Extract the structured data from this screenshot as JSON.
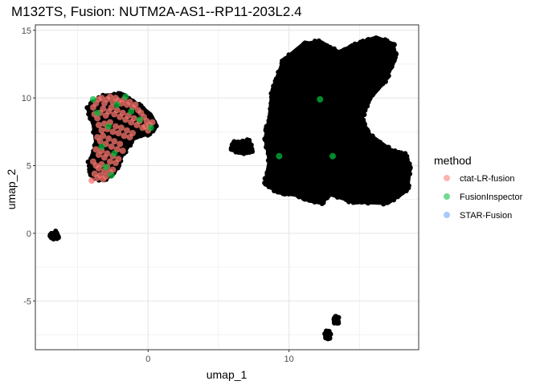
{
  "chart_data": {
    "type": "scatter",
    "title": "M132TS, Fusion:  NUTM2A-AS1--RP11-203L2.4",
    "xlabel": "umap_1",
    "ylabel": "umap_2",
    "xlim": [
      -8,
      19.2
    ],
    "ylim": [
      -8.6,
      15.4
    ],
    "x_ticks": [
      0,
      10
    ],
    "x_tick_labels": [
      "0",
      "10"
    ],
    "y_ticks": [
      -5,
      0,
      5,
      10,
      15
    ],
    "y_tick_labels": [
      "-5",
      "0",
      "5",
      "10",
      "15"
    ],
    "grid": true,
    "legend_position": "right",
    "legend": {
      "title": "method",
      "entries": [
        {
          "label": "ctat-LR-fusion",
          "color": "#f8766d"
        },
        {
          "label": "FusionInspector",
          "color": "#00ba38"
        },
        {
          "label": "STAR-Fusion",
          "color": "#619cff"
        }
      ]
    },
    "background_series": {
      "description_color": "#000000",
      "clusters": [
        {
          "polygon": [
            [
              -4.0,
              9.6
            ],
            [
              -3.2,
              10.2
            ],
            [
              -1.8,
              10.3
            ],
            [
              -0.8,
              9.6
            ],
            [
              0.2,
              8.8
            ],
            [
              0.6,
              8.0
            ],
            [
              0.2,
              7.4
            ],
            [
              -1.0,
              7.0
            ],
            [
              -1.8,
              5.8
            ],
            [
              -2.4,
              4.4
            ],
            [
              -3.2,
              3.9
            ],
            [
              -4.0,
              4.2
            ],
            [
              -4.2,
              5.2
            ],
            [
              -3.7,
              6.6
            ],
            [
              -3.9,
              8.0
            ],
            [
              -4.3,
              9.2
            ]
          ],
          "n": 200
        },
        {
          "polygon": [
            [
              6.0,
              6.7
            ],
            [
              7.2,
              6.9
            ],
            [
              7.4,
              6.1
            ],
            [
              6.6,
              5.9
            ],
            [
              5.9,
              6.2
            ]
          ],
          "n": 22
        },
        {
          "polygon": [
            [
              8.8,
              10.6
            ],
            [
              9.6,
              12.8
            ],
            [
              11.0,
              14.0
            ],
            [
              12.2,
              14.2
            ],
            [
              13.5,
              13.4
            ],
            [
              14.8,
              14.0
            ],
            [
              16.2,
              14.5
            ],
            [
              17.4,
              14.0
            ],
            [
              17.6,
              13.0
            ],
            [
              16.8,
              11.2
            ],
            [
              15.8,
              10.0
            ],
            [
              15.2,
              8.6
            ],
            [
              15.6,
              7.4
            ],
            [
              17.2,
              6.2
            ],
            [
              18.3,
              5.8
            ],
            [
              18.6,
              4.8
            ],
            [
              18.4,
              3.2
            ],
            [
              17.0,
              2.2
            ],
            [
              14.6,
              2.3
            ],
            [
              12.8,
              2.9
            ],
            [
              12.4,
              2.2
            ],
            [
              11.4,
              2.4
            ],
            [
              10.6,
              2.8
            ],
            [
              9.2,
              3.0
            ],
            [
              8.3,
              3.7
            ],
            [
              8.6,
              5.4
            ],
            [
              8.3,
              7.0
            ],
            [
              8.6,
              8.6
            ]
          ],
          "n": 1400
        },
        {
          "polygon": [
            [
              -6.9,
              -0.05
            ],
            [
              -6.5,
              0.1
            ],
            [
              -6.3,
              -0.25
            ],
            [
              -6.6,
              -0.4
            ],
            [
              -6.95,
              -0.3
            ]
          ],
          "n": 10
        },
        {
          "polygon": [
            [
              12.6,
              -7.3
            ],
            [
              12.9,
              -7.2
            ],
            [
              12.9,
              -7.7
            ],
            [
              12.6,
              -7.8
            ]
          ],
          "n": 4
        },
        {
          "polygon": [
            [
              13.2,
              -6.2
            ],
            [
              13.5,
              -6.2
            ],
            [
              13.5,
              -6.6
            ],
            [
              13.2,
              -6.6
            ]
          ],
          "n": 4
        }
      ]
    },
    "series": [
      {
        "name": "ctat-LR-fusion",
        "color": "#f8766d",
        "points": [
          [
            -3.9,
            9.3
          ],
          [
            -3.7,
            9.6
          ],
          [
            -3.5,
            9.9
          ],
          [
            -3.3,
            10.0
          ],
          [
            -3.1,
            9.6
          ],
          [
            -2.9,
            9.9
          ],
          [
            -2.7,
            10.1
          ],
          [
            -2.5,
            9.7
          ],
          [
            -2.3,
            10.0
          ],
          [
            -2.1,
            9.8
          ],
          [
            -1.9,
            9.6
          ],
          [
            -1.7,
            9.9
          ],
          [
            -1.5,
            9.5
          ],
          [
            -1.3,
            9.7
          ],
          [
            -1.1,
            9.3
          ],
          [
            -0.9,
            9.5
          ],
          [
            -0.7,
            9.1
          ],
          [
            -0.5,
            8.9
          ],
          [
            -0.3,
            8.6
          ],
          [
            -0.1,
            8.3
          ],
          [
            0.1,
            8.0
          ],
          [
            0.3,
            8.2
          ],
          [
            -3.8,
            8.8
          ],
          [
            -3.6,
            8.5
          ],
          [
            -3.4,
            8.9
          ],
          [
            -3.2,
            9.2
          ],
          [
            -3.0,
            8.7
          ],
          [
            -2.8,
            9.0
          ],
          [
            -2.6,
            9.3
          ],
          [
            -2.4,
            8.8
          ],
          [
            -2.2,
            9.1
          ],
          [
            -2.0,
            8.6
          ],
          [
            -1.8,
            8.9
          ],
          [
            -1.6,
            8.4
          ],
          [
            -1.4,
            8.7
          ],
          [
            -1.2,
            8.2
          ],
          [
            -1.0,
            8.5
          ],
          [
            -0.8,
            8.0
          ],
          [
            -0.6,
            8.3
          ],
          [
            -0.4,
            7.8
          ],
          [
            -0.2,
            7.9
          ],
          [
            0.0,
            7.6
          ],
          [
            -3.5,
            8.0
          ],
          [
            -3.3,
            7.6
          ],
          [
            -3.1,
            8.1
          ],
          [
            -2.9,
            7.7
          ],
          [
            -2.7,
            8.2
          ],
          [
            -2.5,
            7.5
          ],
          [
            -2.3,
            7.9
          ],
          [
            -2.1,
            7.4
          ],
          [
            -1.9,
            7.8
          ],
          [
            -1.7,
            7.2
          ],
          [
            -1.5,
            7.6
          ],
          [
            -1.3,
            7.1
          ],
          [
            -1.1,
            7.4
          ],
          [
            -3.6,
            7.1
          ],
          [
            -3.4,
            6.8
          ],
          [
            -3.2,
            7.2
          ],
          [
            -3.0,
            6.6
          ],
          [
            -2.8,
            7.0
          ],
          [
            -2.6,
            6.4
          ],
          [
            -2.4,
            6.8
          ],
          [
            -2.2,
            6.2
          ],
          [
            -2.0,
            6.6
          ],
          [
            -1.8,
            6.1
          ],
          [
            -3.7,
            6.2
          ],
          [
            -3.5,
            5.8
          ],
          [
            -3.3,
            6.1
          ],
          [
            -3.1,
            5.6
          ],
          [
            -2.9,
            5.9
          ],
          [
            -2.7,
            5.3
          ],
          [
            -2.5,
            5.7
          ],
          [
            -2.3,
            5.2
          ],
          [
            -2.1,
            5.5
          ],
          [
            -3.9,
            5.3
          ],
          [
            -3.7,
            5.0
          ],
          [
            -3.5,
            4.8
          ],
          [
            -3.3,
            5.1
          ],
          [
            -3.1,
            4.6
          ],
          [
            -2.9,
            4.9
          ],
          [
            -2.7,
            4.5
          ],
          [
            -2.5,
            4.7
          ],
          [
            -3.8,
            4.4
          ],
          [
            -3.6,
            4.1
          ],
          [
            -3.4,
            4.3
          ],
          [
            -3.2,
            4.0
          ],
          [
            -3.0,
            4.2
          ],
          [
            -4.0,
            3.9
          ]
        ]
      },
      {
        "name": "FusionInspector",
        "color": "#00ba38",
        "points": [
          [
            -3.6,
            8.9
          ],
          [
            -2.2,
            9.5
          ],
          [
            -1.2,
            9.0
          ],
          [
            -0.6,
            8.4
          ],
          [
            -2.8,
            7.9
          ],
          [
            -3.3,
            6.4
          ],
          [
            -2.4,
            5.9
          ],
          [
            -3.0,
            4.9
          ],
          [
            -1.6,
            10.1
          ],
          [
            0.2,
            7.8
          ],
          [
            -3.9,
            9.9
          ],
          [
            -2.6,
            4.3
          ],
          [
            12.2,
            9.9
          ],
          [
            9.3,
            5.7
          ],
          [
            13.1,
            5.7
          ]
        ]
      },
      {
        "name": "STAR-Fusion",
        "color": "#619cff",
        "points": []
      }
    ]
  }
}
